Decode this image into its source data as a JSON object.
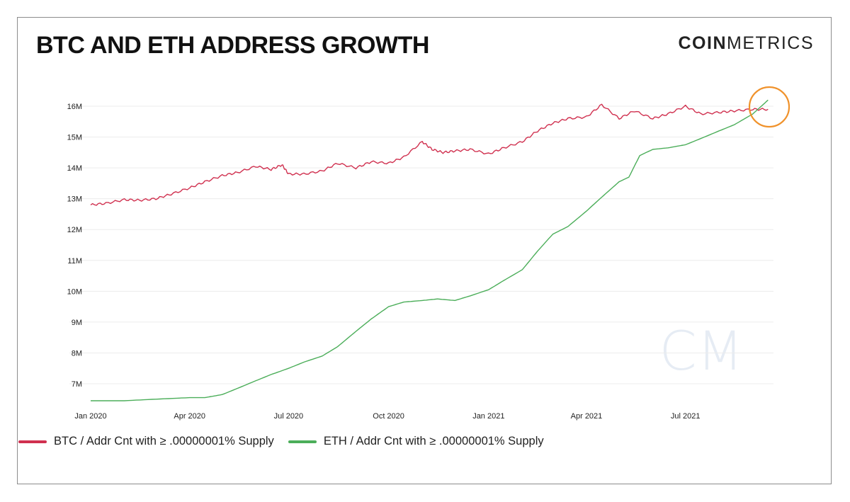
{
  "header": {
    "title": "BTC AND ETH ADDRESS GROWTH",
    "logo_bold": "COIN",
    "logo_light": "METRICS",
    "watermark": "CM"
  },
  "colors": {
    "btc": "#d0304f",
    "eth": "#4cae5a",
    "highlight": "#f0922b",
    "grid": "#ececec"
  },
  "chart_data": {
    "type": "line",
    "title": "BTC AND ETH ADDRESS GROWTH",
    "xlabel": "",
    "ylabel": "",
    "x_ticks": [
      "Jan 2020",
      "Apr 2020",
      "Jul 2020",
      "Oct 2020",
      "Jan 2021",
      "Apr 2021",
      "Jul 2021"
    ],
    "y_ticks": [
      "7M",
      "8M",
      "9M",
      "10M",
      "11M",
      "12M",
      "13M",
      "14M",
      "15M",
      "16M"
    ],
    "ylim": [
      6.4,
      16.3
    ],
    "xlim": [
      "2020-01-01",
      "2021-09-20"
    ],
    "grid": true,
    "legend_position": "bottom-left",
    "annotation": "orange circle around line crossover at 2021-09",
    "series": [
      {
        "name": "BTC / Addr Cnt with ≥ .00000001% Supply",
        "color": "#d0304f",
        "points": [
          [
            "2020-01-01",
            12.8
          ],
          [
            "2020-01-15",
            12.85
          ],
          [
            "2020-02-01",
            12.97
          ],
          [
            "2020-02-15",
            12.95
          ],
          [
            "2020-03-01",
            13.0
          ],
          [
            "2020-03-15",
            13.15
          ],
          [
            "2020-04-01",
            13.35
          ],
          [
            "2020-04-15",
            13.55
          ],
          [
            "2020-05-01",
            13.75
          ],
          [
            "2020-05-15",
            13.85
          ],
          [
            "2020-06-01",
            14.05
          ],
          [
            "2020-06-15",
            13.95
          ],
          [
            "2020-06-25",
            14.1
          ],
          [
            "2020-07-01",
            13.8
          ],
          [
            "2020-07-15",
            13.8
          ],
          [
            "2020-08-01",
            13.9
          ],
          [
            "2020-08-15",
            14.15
          ],
          [
            "2020-09-01",
            14.0
          ],
          [
            "2020-09-15",
            14.2
          ],
          [
            "2020-10-01",
            14.15
          ],
          [
            "2020-10-15",
            14.35
          ],
          [
            "2020-11-01",
            14.85
          ],
          [
            "2020-11-10",
            14.6
          ],
          [
            "2020-11-20",
            14.5
          ],
          [
            "2020-12-01",
            14.55
          ],
          [
            "2020-12-15",
            14.6
          ],
          [
            "2021-01-01",
            14.45
          ],
          [
            "2021-01-15",
            14.65
          ],
          [
            "2021-02-01",
            14.85
          ],
          [
            "2021-02-15",
            15.2
          ],
          [
            "2021-03-01",
            15.45
          ],
          [
            "2021-03-15",
            15.6
          ],
          [
            "2021-04-01",
            15.65
          ],
          [
            "2021-04-15",
            16.05
          ],
          [
            "2021-05-01",
            15.6
          ],
          [
            "2021-05-15",
            15.85
          ],
          [
            "2021-06-01",
            15.6
          ],
          [
            "2021-06-15",
            15.75
          ],
          [
            "2021-07-01",
            16.0
          ],
          [
            "2021-07-15",
            15.75
          ],
          [
            "2021-08-01",
            15.8
          ],
          [
            "2021-08-15",
            15.85
          ],
          [
            "2021-09-01",
            15.9
          ],
          [
            "2021-09-15",
            15.9
          ]
        ]
      },
      {
        "name": "ETH / Addr Cnt with ≥ .00000001% Supply",
        "color": "#4cae5a",
        "points": [
          [
            "2020-01-01",
            6.45
          ],
          [
            "2020-02-01",
            6.45
          ],
          [
            "2020-03-01",
            6.5
          ],
          [
            "2020-04-01",
            6.55
          ],
          [
            "2020-04-15",
            6.55
          ],
          [
            "2020-05-01",
            6.65
          ],
          [
            "2020-05-15",
            6.85
          ],
          [
            "2020-06-01",
            7.1
          ],
          [
            "2020-06-15",
            7.3
          ],
          [
            "2020-07-01",
            7.5
          ],
          [
            "2020-07-15",
            7.7
          ],
          [
            "2020-08-01",
            7.9
          ],
          [
            "2020-08-15",
            8.2
          ],
          [
            "2020-09-01",
            8.7
          ],
          [
            "2020-09-15",
            9.1
          ],
          [
            "2020-10-01",
            9.5
          ],
          [
            "2020-10-15",
            9.65
          ],
          [
            "2020-11-01",
            9.7
          ],
          [
            "2020-11-15",
            9.75
          ],
          [
            "2020-12-01",
            9.7
          ],
          [
            "2020-12-15",
            9.85
          ],
          [
            "2021-01-01",
            10.05
          ],
          [
            "2021-01-15",
            10.35
          ],
          [
            "2021-02-01",
            10.7
          ],
          [
            "2021-02-15",
            11.3
          ],
          [
            "2021-03-01",
            11.85
          ],
          [
            "2021-03-15",
            12.1
          ],
          [
            "2021-04-01",
            12.6
          ],
          [
            "2021-04-15",
            13.05
          ],
          [
            "2021-05-01",
            13.55
          ],
          [
            "2021-05-10",
            13.7
          ],
          [
            "2021-05-20",
            14.4
          ],
          [
            "2021-06-01",
            14.6
          ],
          [
            "2021-06-15",
            14.65
          ],
          [
            "2021-07-01",
            14.75
          ],
          [
            "2021-07-15",
            14.95
          ],
          [
            "2021-08-01",
            15.2
          ],
          [
            "2021-08-15",
            15.4
          ],
          [
            "2021-09-01",
            15.75
          ],
          [
            "2021-09-15",
            16.2
          ]
        ]
      }
    ]
  }
}
